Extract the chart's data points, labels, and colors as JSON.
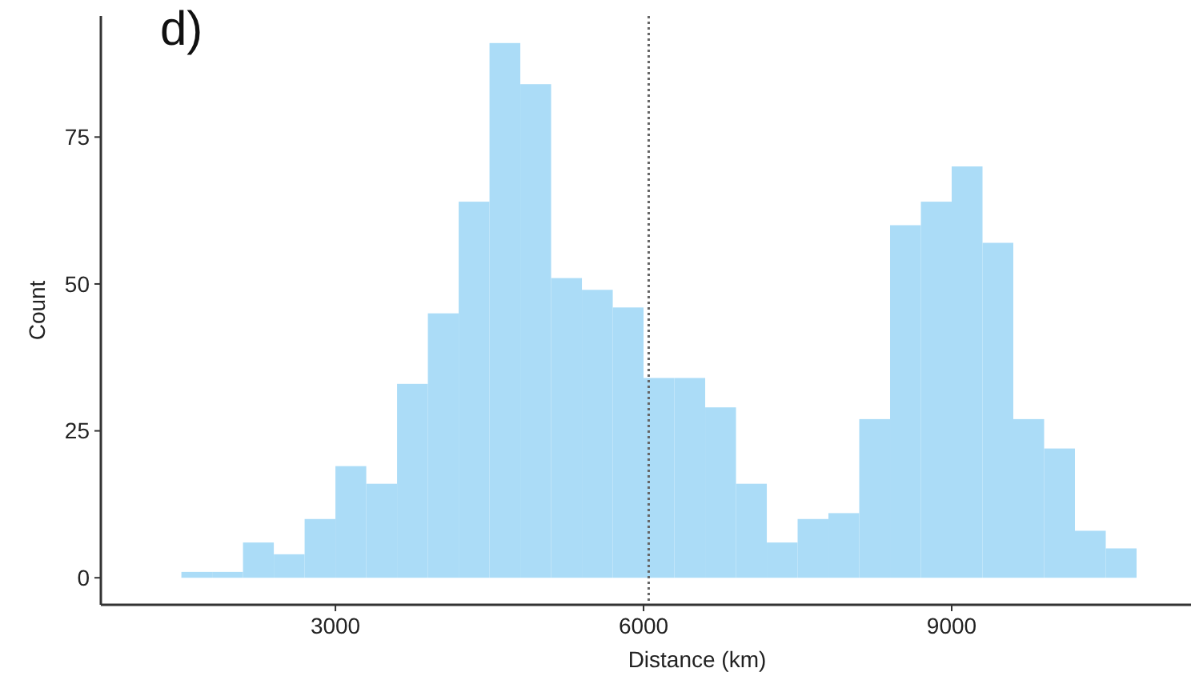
{
  "chart_data": {
    "type": "histogram",
    "title": "d)",
    "xlabel": "Distance (km)",
    "ylabel": "Count",
    "bins": [
      1500,
      1800,
      2100,
      2400,
      2700,
      3000,
      3300,
      3600,
      3900,
      4200,
      4500,
      4800,
      5100,
      5400,
      5700,
      6000,
      6300,
      6600,
      6900,
      7200,
      7500,
      7800,
      8100,
      8400,
      8700,
      9000,
      9300,
      9600,
      9900,
      10200,
      10500,
      10800
    ],
    "values": [
      1,
      1,
      6,
      4,
      10,
      19,
      16,
      33,
      45,
      64,
      91,
      84,
      51,
      49,
      46,
      34,
      34,
      29,
      16,
      6,
      10,
      11,
      27,
      60,
      64,
      70,
      57,
      27,
      22,
      8,
      5
    ],
    "color": "#abdcf7",
    "xlim": [
      716,
      11330
    ],
    "xticks": [
      3000,
      6000,
      9000
    ],
    "ylim": [
      -4.6,
      95.6
    ],
    "yticks": [
      0,
      25,
      50,
      75
    ],
    "ref_lines": [
      {
        "axis": "x",
        "value": 6050,
        "line_style": "dotted",
        "color": "#666666"
      }
    ],
    "grid": false
  }
}
